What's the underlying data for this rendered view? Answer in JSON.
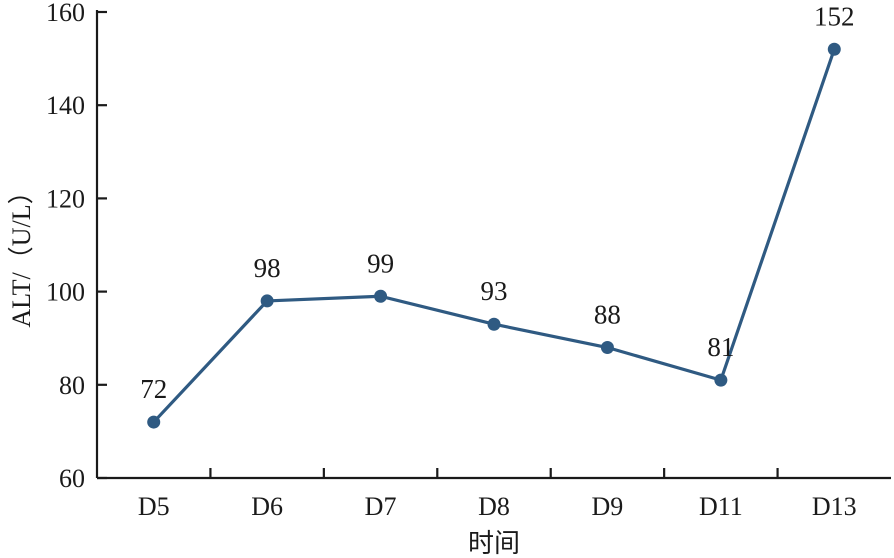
{
  "chart_data": {
    "type": "line",
    "categories": [
      "D5",
      "D6",
      "D7",
      "D8",
      "D9",
      "D11",
      "D13"
    ],
    "values": [
      72,
      98,
      99,
      93,
      88,
      81,
      152
    ],
    "data_labels": [
      "72",
      "98",
      "99",
      "93",
      "88",
      "81",
      "152"
    ],
    "xlabel": "时间",
    "ylabel": "ALT/（U/L）",
    "ylim": [
      60,
      160
    ],
    "yticks": [
      60,
      80,
      100,
      120,
      140,
      160
    ],
    "ytick_labels": [
      "60",
      "80",
      "100",
      "120",
      "140",
      "160"
    ],
    "grid": false,
    "color": "#2f5a82"
  }
}
